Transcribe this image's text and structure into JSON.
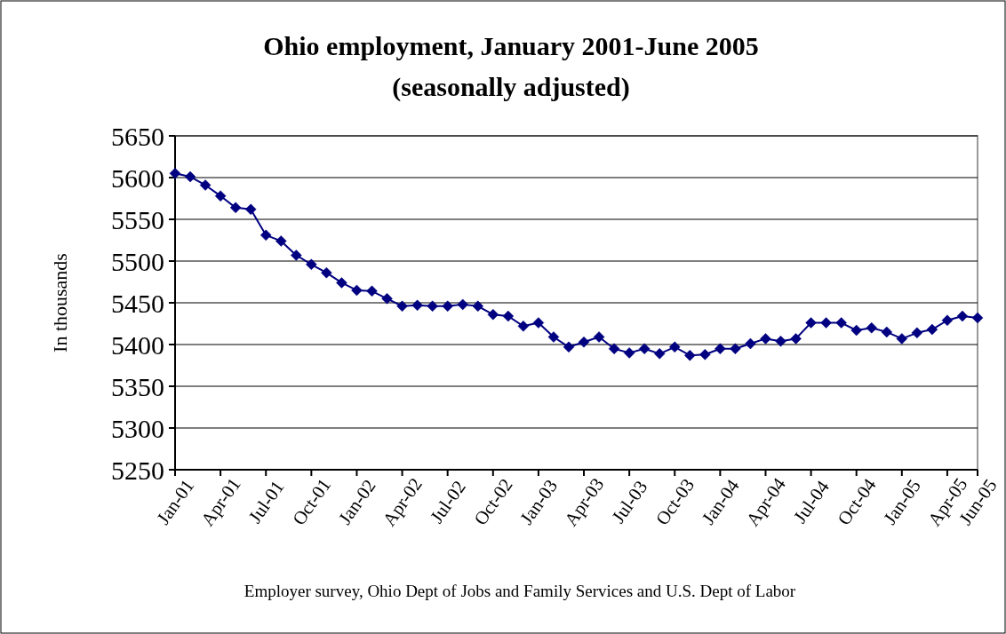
{
  "chart_data": {
    "type": "line",
    "title": "Ohio employment, January 2001-June 2005",
    "subtitle": "(seasonally adjusted)",
    "ylabel": "In thousands",
    "categories": [
      "Jan-01",
      null,
      null,
      "Apr-01",
      null,
      null,
      "Jul-01",
      null,
      null,
      "Oct-01",
      null,
      null,
      "Jan-02",
      null,
      null,
      "Apr-02",
      null,
      null,
      "Jul-02",
      null,
      null,
      "Oct-02",
      null,
      null,
      "Jan-03",
      null,
      null,
      "Apr-03",
      null,
      null,
      "Jul-03",
      null,
      null,
      "Oct-03",
      null,
      null,
      "Jan-04",
      null,
      null,
      "Apr-04",
      null,
      null,
      "Jul-04",
      null,
      null,
      "Oct-04",
      null,
      null,
      "Jan-05",
      null,
      null,
      "Apr-05",
      null,
      "Jun-05"
    ],
    "series": [
      {
        "color": "#000080",
        "values": [
          5605,
          5601,
          5591,
          5578,
          5564,
          5562,
          5531,
          5524,
          5507,
          5496,
          5486,
          5474,
          5465,
          5464,
          5455,
          5446,
          5447,
          5446,
          5446,
          5448,
          5446,
          5436,
          5434,
          5422,
          5426,
          5409,
          5397,
          5403,
          5409,
          5395,
          5390,
          5395,
          5389,
          5397,
          5387,
          5388,
          5395,
          5395,
          5401,
          5407,
          5404,
          5407,
          5426,
          5426,
          5426,
          5417,
          5420,
          5415,
          5407,
          5414,
          5418,
          5429,
          5434,
          5432
        ]
      }
    ],
    "ylim": [
      5250,
      5650
    ],
    "yticks": [
      5250,
      5300,
      5350,
      5400,
      5450,
      5500,
      5550,
      5600,
      5650
    ],
    "grid": "y",
    "marker": "diamond",
    "line_style": "solid",
    "annotations": [
      "Employer survey, Ohio Dept of Jobs and Family Services and U.S. Dept of Labor"
    ]
  }
}
